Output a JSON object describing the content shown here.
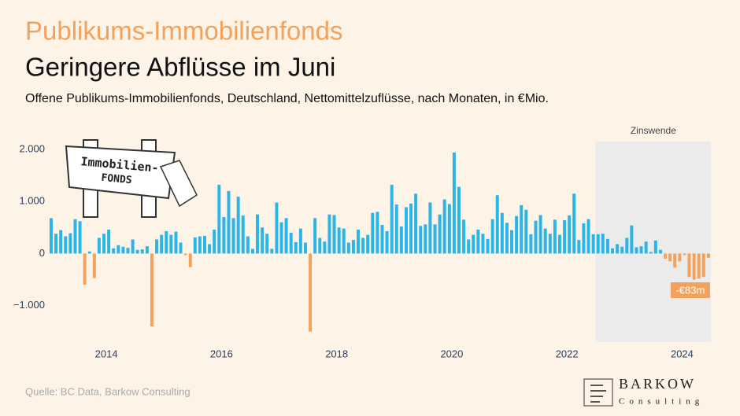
{
  "chart_data": {
    "type": "bar",
    "title": "Publikums-Immobilienfonds",
    "subtitle": "Geringere Abflüsse im Juni",
    "description": "Offene Publikums-Immobilienfonds, Deutschland, Nettomittelzuflüsse, nach Monaten, in €Mio.",
    "source": "Quelle: BC Data, Barkow Consulting",
    "logo": {
      "name": "BARKOW",
      "sub": "Consulting"
    },
    "sign": {
      "line1": "Immobilien-",
      "line2": "FONDS"
    },
    "shaded_region": {
      "start": 2022.5,
      "label": "Zinswende"
    },
    "annotation": {
      "text": "-€83m"
    },
    "colors": {
      "positive": "#29b5e8",
      "negative": "#f2a25c"
    },
    "xlim": [
      2013,
      2024.5
    ],
    "xticks": [
      2014,
      2016,
      2018,
      2020,
      2022,
      2024
    ],
    "ylim": [
      -1700,
      2150
    ],
    "yticks": [
      {
        "value": 2000,
        "label": "2.000"
      },
      {
        "value": 1000,
        "label": "1.000"
      },
      0,
      {
        "value": -1000,
        "label": "−1.000"
      }
    ],
    "x": [
      2013,
      2013.083,
      2013.167,
      2013.25,
      2013.333,
      2013.417,
      2013.5,
      2013.583,
      2013.667,
      2013.75,
      2013.833,
      2013.917,
      2014,
      2014.083,
      2014.167,
      2014.25,
      2014.333,
      2014.417,
      2014.5,
      2014.583,
      2014.667,
      2014.75,
      2014.833,
      2014.917,
      2015,
      2015.083,
      2015.167,
      2015.25,
      2015.333,
      2015.417,
      2015.5,
      2015.583,
      2015.667,
      2015.75,
      2015.833,
      2015.917,
      2016,
      2016.083,
      2016.167,
      2016.25,
      2016.333,
      2016.417,
      2016.5,
      2016.583,
      2016.667,
      2016.75,
      2016.833,
      2016.917,
      2017,
      2017.083,
      2017.167,
      2017.25,
      2017.333,
      2017.417,
      2017.5,
      2017.583,
      2017.667,
      2017.75,
      2017.833,
      2017.917,
      2018,
      2018.083,
      2018.167,
      2018.25,
      2018.333,
      2018.417,
      2018.5,
      2018.583,
      2018.667,
      2018.75,
      2018.833,
      2018.917,
      2019,
      2019.083,
      2019.167,
      2019.25,
      2019.333,
      2019.417,
      2019.5,
      2019.583,
      2019.667,
      2019.75,
      2019.833,
      2019.917,
      2020,
      2020.083,
      2020.167,
      2020.25,
      2020.333,
      2020.417,
      2020.5,
      2020.583,
      2020.667,
      2020.75,
      2020.833,
      2020.917,
      2021,
      2021.083,
      2021.167,
      2021.25,
      2021.333,
      2021.417,
      2021.5,
      2021.583,
      2021.667,
      2021.75,
      2021.833,
      2021.917,
      2022,
      2022.083,
      2022.167,
      2022.25,
      2022.333,
      2022.417,
      2022.5,
      2022.583,
      2022.667,
      2022.75,
      2022.833,
      2022.917,
      2023,
      2023.083,
      2023.167,
      2023.25,
      2023.333,
      2023.417,
      2023.5,
      2023.583,
      2023.667,
      2023.75,
      2023.833,
      2023.917,
      2024,
      2024.083,
      2024.167,
      2024.25,
      2024.333,
      2024.417
    ],
    "values": [
      680,
      380,
      450,
      330,
      390,
      660,
      620,
      -600,
      40,
      -470,
      300,
      380,
      460,
      100,
      160,
      130,
      110,
      270,
      70,
      80,
      140,
      -1400,
      270,
      360,
      430,
      360,
      420,
      210,
      -30,
      -260,
      310,
      330,
      340,
      180,
      460,
      1320,
      700,
      1200,
      680,
      1090,
      730,
      330,
      90,
      750,
      500,
      380,
      90,
      980,
      600,
      680,
      400,
      220,
      480,
      210,
      -1500,
      680,
      300,
      230,
      750,
      740,
      500,
      480,
      210,
      260,
      460,
      300,
      360,
      780,
      800,
      550,
      430,
      1320,
      940,
      520,
      890,
      960,
      1150,
      530,
      560,
      980,
      560,
      750,
      1040,
      950,
      1940,
      1280,
      650,
      270,
      360,
      460,
      380,
      280,
      660,
      1120,
      780,
      590,
      450,
      720,
      930,
      840,
      370,
      630,
      740,
      480,
      380,
      650,
      360,
      640,
      730,
      1150,
      260,
      580,
      660,
      370,
      370,
      380,
      280,
      100,
      180,
      130,
      300,
      540,
      120,
      140,
      230,
      30,
      250,
      70,
      -100,
      -150,
      -270,
      -150,
      -30,
      -450,
      -500,
      -480,
      -450,
      -83
    ]
  }
}
